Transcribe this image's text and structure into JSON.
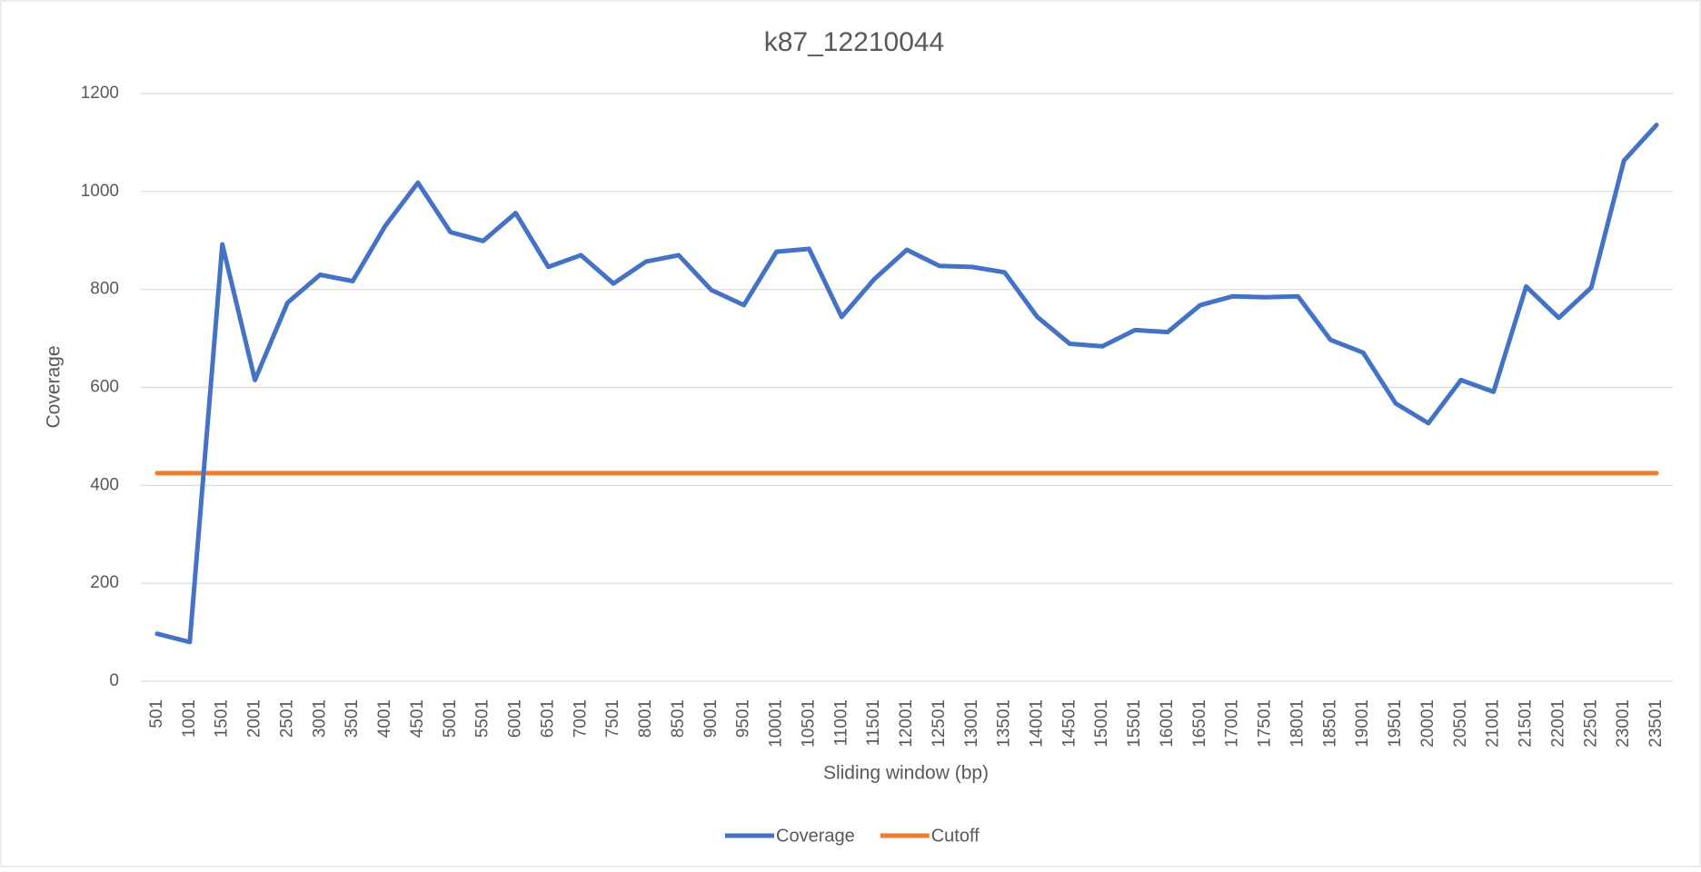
{
  "chart_data": {
    "type": "line",
    "title": "k87_12210044",
    "xlabel": "Sliding window (bp)",
    "ylabel": "Coverage",
    "categories": [
      "501",
      "1001",
      "1501",
      "2001",
      "2501",
      "3001",
      "3501",
      "4001",
      "4501",
      "5001",
      "5501",
      "6001",
      "6501",
      "7001",
      "7501",
      "8001",
      "8501",
      "9001",
      "9501",
      "10001",
      "10501",
      "11001",
      "11501",
      "12001",
      "12501",
      "13001",
      "13501",
      "14001",
      "14501",
      "15001",
      "15501",
      "16001",
      "16501",
      "17001",
      "17501",
      "18001",
      "18501",
      "19001",
      "19501",
      "20001",
      "20501",
      "21001",
      "21501",
      "22001",
      "22501",
      "23001",
      "23501"
    ],
    "series": [
      {
        "name": "Coverage",
        "color": "#4472c4",
        "values": [
          97,
          80,
          892,
          615,
          773,
          830,
          817,
          930,
          1018,
          917,
          899,
          956,
          846,
          870,
          812,
          857,
          870,
          799,
          768,
          877,
          883,
          744,
          821,
          881,
          848,
          846,
          835,
          744,
          689,
          684,
          717,
          713,
          768,
          786,
          784,
          786,
          697,
          671,
          567,
          527,
          615,
          591,
          806,
          742,
          804,
          1063,
          1136
        ]
      },
      {
        "name": "Cutoff",
        "color": "#ed7d31",
        "values": [
          425,
          425,
          425,
          425,
          425,
          425,
          425,
          425,
          425,
          425,
          425,
          425,
          425,
          425,
          425,
          425,
          425,
          425,
          425,
          425,
          425,
          425,
          425,
          425,
          425,
          425,
          425,
          425,
          425,
          425,
          425,
          425,
          425,
          425,
          425,
          425,
          425,
          425,
          425,
          425,
          425,
          425,
          425,
          425,
          425,
          425,
          425
        ]
      }
    ],
    "ylim": [
      0,
      1200
    ],
    "yticks": [
      0,
      200,
      400,
      600,
      800,
      1000,
      1200
    ],
    "grid": true,
    "legend": "bottom"
  }
}
